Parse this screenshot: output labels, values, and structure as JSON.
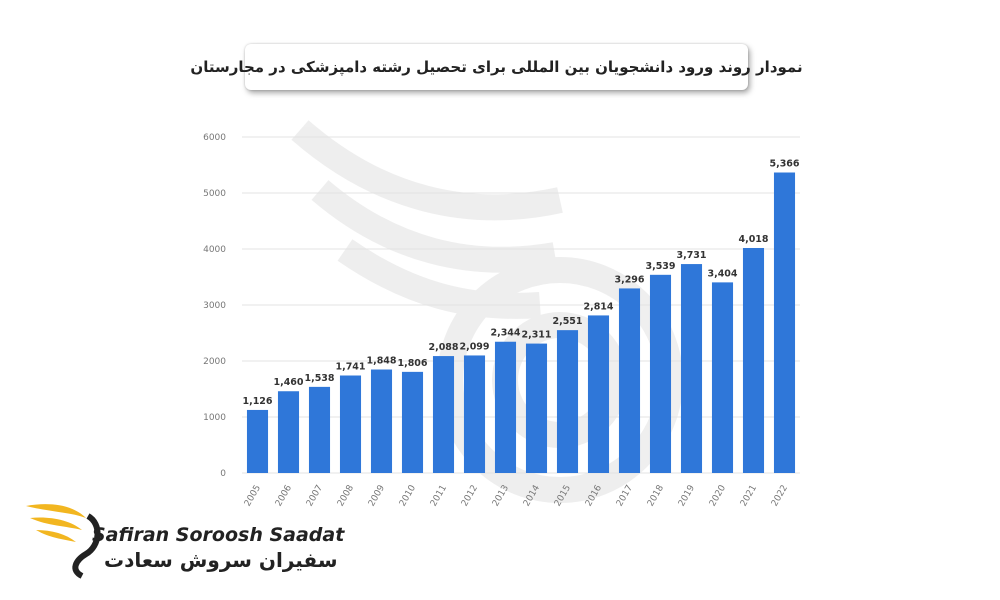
{
  "chart_data": {
    "type": "bar",
    "title": "نمودار روند ورود دانشجویان بین المللی برای تحصیل رشته دامپزشکی در مجارستان",
    "categories": [
      "2005",
      "2006",
      "2007",
      "2008",
      "2009",
      "2010",
      "2011",
      "2012",
      "2013",
      "2014",
      "2015",
      "2016",
      "2017",
      "2018",
      "2019",
      "2020",
      "2021",
      "2022"
    ],
    "values": [
      1126,
      1460,
      1538,
      1741,
      1848,
      1806,
      2088,
      2099,
      2344,
      2311,
      2551,
      2814,
      3296,
      3539,
      3731,
      3404,
      4018,
      5366
    ],
    "value_labels": [
      "1,126",
      "1,460",
      "1,538",
      "1,741",
      "1,848",
      "1,806",
      "2,088",
      "2,099",
      "2,344",
      "2,311",
      "2,551",
      "2,814",
      "3,296",
      "3,539",
      "3,731",
      "3,404",
      "4,018",
      "5,366"
    ],
    "yticks": [
      0,
      1000,
      2000,
      3000,
      4000,
      5000,
      6000
    ],
    "ylim": [
      0,
      6000
    ],
    "grid": "horizontal",
    "bar_color": "#2f77d9",
    "xlabel": "",
    "ylabel": ""
  },
  "logo": {
    "name": "Safiran Soroosh Saadat",
    "name_fa": "سفیران سروش سعادت",
    "icon": "golden-wing-icon",
    "colors": {
      "wing": "#f2b620",
      "text": "#222222"
    }
  },
  "watermark": {
    "icon": "wing-watermark-icon",
    "color": "#d9d9d9"
  }
}
